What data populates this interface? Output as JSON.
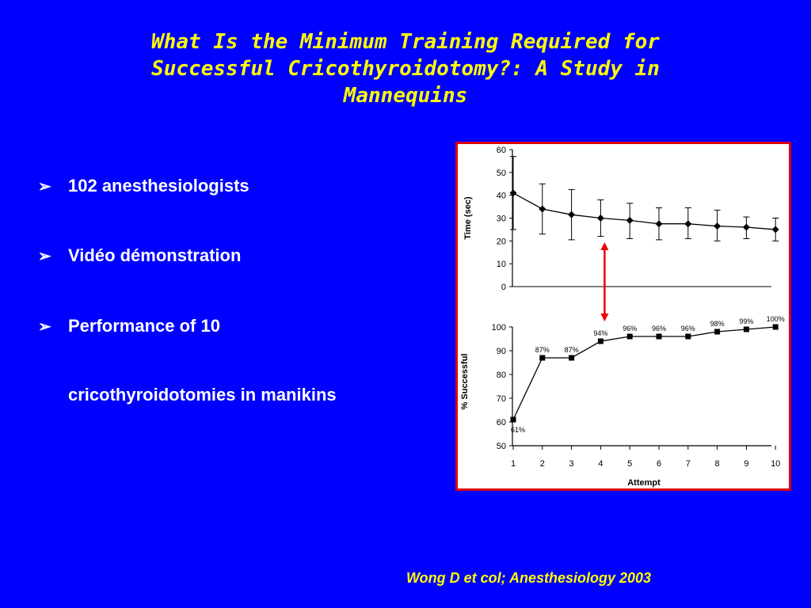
{
  "slide": {
    "title_lines": [
      "What Is the Minimum Training Required for",
      "Successful Cricothyroidotomy?: A Study in",
      "Mannequins"
    ],
    "bullets": [
      {
        "text": "102 anesthesiologists"
      },
      {
        "text": "Vidéo démonstration"
      },
      {
        "text": "Performance of 10",
        "continuation": "cricothyroidotomies in manikins"
      }
    ],
    "bullet_glyph": "➢",
    "citation": "Wong D et col; Anesthesiology 2003",
    "colors": {
      "background": "#0000FF",
      "title": "#FFFF00",
      "text": "#FFFFFF",
      "frame": "#DD0000",
      "arrow": "#EE0000"
    }
  },
  "chart_data": [
    {
      "type": "line",
      "xlabel": "",
      "ylabel": "Time (sec)",
      "x": [
        1,
        2,
        3,
        4,
        5,
        6,
        7,
        8,
        9,
        10
      ],
      "y_ticks": [
        0,
        10,
        20,
        30,
        40,
        50,
        60
      ],
      "ylim": [
        0,
        60
      ],
      "marker": "diamond",
      "series": [
        {
          "values": [
            41,
            34,
            31.5,
            30,
            29,
            27.5,
            27.5,
            26.5,
            26,
            25
          ],
          "error_upper": [
            57,
            45,
            42.5,
            38,
            36.5,
            34.5,
            34.5,
            33.5,
            30.5,
            30
          ],
          "error_lower": [
            25,
            23,
            20.5,
            22,
            21,
            20.5,
            21,
            20,
            21,
            20
          ]
        }
      ],
      "grid": false
    },
    {
      "type": "line",
      "xlabel": "Attempt",
      "ylabel": "% Successful",
      "x": [
        1,
        2,
        3,
        4,
        5,
        6,
        7,
        8,
        9,
        10
      ],
      "x_ticks": [
        "1",
        "2",
        "3",
        "4",
        "5",
        "6",
        "7",
        "8",
        "9",
        "10"
      ],
      "y_ticks": [
        50,
        60,
        70,
        80,
        90,
        100
      ],
      "ylim": [
        50,
        100
      ],
      "marker": "square",
      "series": [
        {
          "values": [
            61,
            87,
            87,
            94,
            96,
            96,
            96,
            98,
            99,
            100
          ],
          "labels": [
            "61%",
            "87%",
            "87%",
            "94%",
            "96%",
            "96%",
            "96%",
            "98%",
            "99%",
            "100%"
          ]
        }
      ],
      "grid": false
    }
  ],
  "annotation": {
    "type": "double-arrow",
    "color": "#EE0000",
    "at_x": 4
  }
}
